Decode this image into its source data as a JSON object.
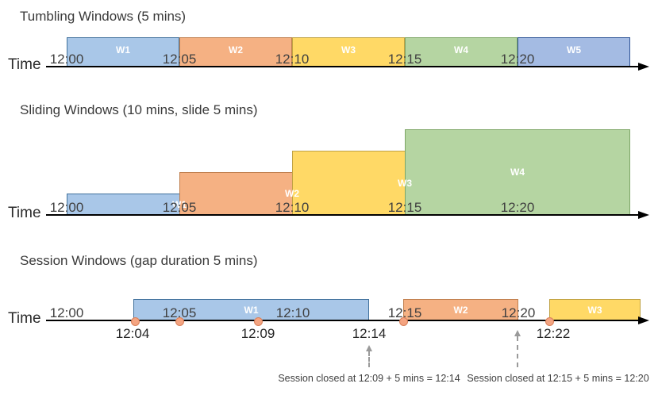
{
  "colors": {
    "blue": {
      "fill": "#A9C7E8",
      "border": "#41719C"
    },
    "orange": {
      "fill": "#F5B183",
      "border": "#C07F4E"
    },
    "yellow": {
      "fill": "#FFD966",
      "border": "#C0A243"
    },
    "green": {
      "fill": "#B5D5A2",
      "border": "#7EA667"
    },
    "blue2": {
      "fill": "#A4BBE3",
      "border": "#2F5597"
    },
    "event_dot": {
      "fill": "#F4A481",
      "border": "#D9805A"
    },
    "axis": "#000000",
    "tick_text": "#404040",
    "annotation_arrow": "#9a9a9a"
  },
  "diagrams": {
    "tumbling": {
      "title": "Tumbling Windows (5 mins)",
      "axis_label": "Time",
      "ticks": [
        "12:00",
        "12:05",
        "12:10",
        "12:15",
        "12:20"
      ],
      "windows": [
        {
          "label": "W1",
          "start": "12:00",
          "end": "12:05",
          "color": "blue"
        },
        {
          "label": "W2",
          "start": "12:05",
          "end": "12:10",
          "color": "orange"
        },
        {
          "label": "W3",
          "start": "12:10",
          "end": "12:15",
          "color": "yellow"
        },
        {
          "label": "W4",
          "start": "12:15",
          "end": "12:20",
          "color": "green"
        },
        {
          "label": "W5",
          "start": "12:20",
          "end": "",
          "color": "blue2"
        }
      ]
    },
    "sliding": {
      "title": "Sliding Windows (10 mins, slide 5 mins)",
      "axis_label": "Time",
      "ticks": [
        "12:00",
        "12:05",
        "12:10",
        "12:15",
        "12:20"
      ],
      "windows": [
        {
          "label": "W1",
          "start": "12:00",
          "end": "12:10",
          "color": "blue"
        },
        {
          "label": "W2",
          "start": "12:05",
          "end": "12:15",
          "color": "orange"
        },
        {
          "label": "W3",
          "start": "12:10",
          "end": "12:20",
          "color": "yellow"
        },
        {
          "label": "W4",
          "start": "12:15",
          "end": "",
          "color": "green"
        }
      ]
    },
    "session": {
      "title": "Session Windows (gap duration 5 mins)",
      "axis_label": "Time",
      "ticks": [
        "12:00",
        "12:05",
        "12:10",
        "12:15",
        "12:20"
      ],
      "windows": [
        {
          "label": "W1",
          "start": "12:04",
          "end": "12:14",
          "color": "blue"
        },
        {
          "label": "W2",
          "start": "12:15",
          "end": "12:20",
          "color": "orange"
        },
        {
          "label": "W3",
          "start": "12:22",
          "end": "",
          "color": "yellow"
        }
      ],
      "event_dots": [
        "12:04",
        "12:05",
        "12:09",
        "12:15",
        "12:22"
      ],
      "below_labels": [
        "12:04",
        "12:09",
        "12:14",
        "12:22"
      ],
      "annotations": [
        "Session closed at 12:09 + 5 mins = 12:14",
        "Session closed at 12:15 + 5 mins = 12:20"
      ]
    }
  }
}
